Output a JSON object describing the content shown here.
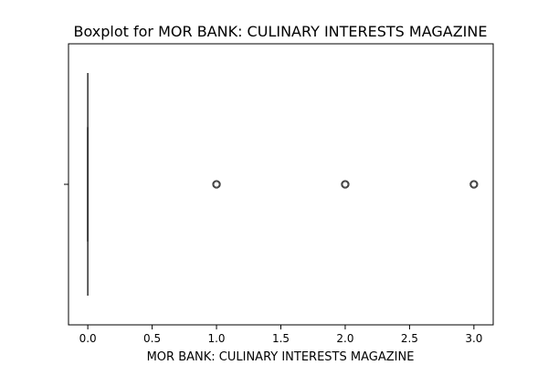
{
  "chart_data": {
    "type": "boxplot",
    "title": "Boxplot for MOR BANK: CULINARY INTERESTS MAGAZINE",
    "xlabel": "MOR BANK: CULINARY INTERESTS MAGAZINE",
    "ylabel": "",
    "xlim": [
      -0.15,
      3.15
    ],
    "xticks": [
      0.0,
      0.5,
      1.0,
      1.5,
      2.0,
      2.5,
      3.0
    ],
    "xtick_labels": [
      "0.0",
      "0.5",
      "1.0",
      "1.5",
      "2.0",
      "2.5",
      "3.0"
    ],
    "box": {
      "q1": 0,
      "median": 0,
      "q3": 0,
      "whisker_low": 0,
      "whisker_high": 0
    },
    "outliers": [
      1,
      2,
      3
    ],
    "grid": false,
    "box_color": "#3a3a3a",
    "axis_color": "#000000"
  }
}
